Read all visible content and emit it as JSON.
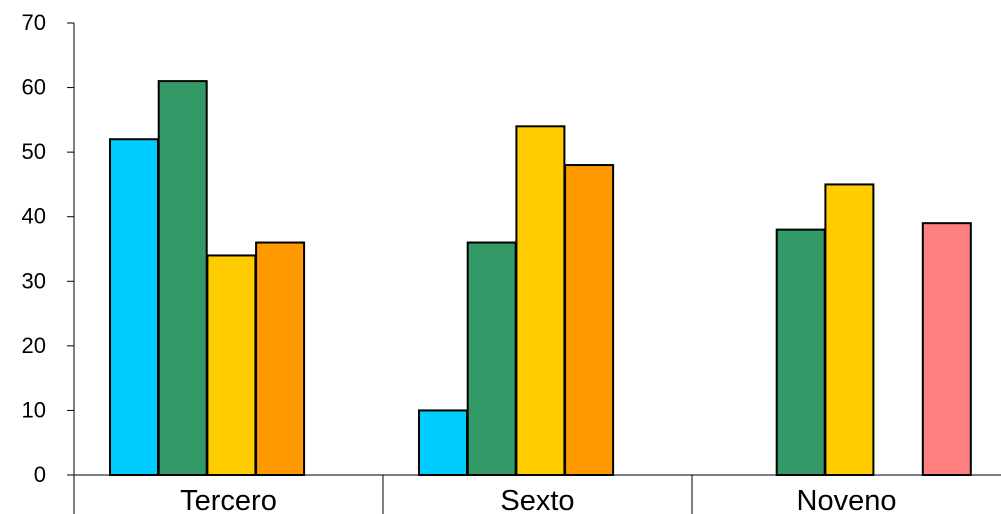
{
  "chart_data": {
    "type": "bar",
    "categories": [
      "Tercero",
      "Sexto",
      "Noveno"
    ],
    "series": [
      {
        "color": "#00ccff",
        "values": [
          52,
          10,
          null
        ]
      },
      {
        "color": "#339966",
        "values": [
          61,
          36,
          38
        ]
      },
      {
        "color": "#ffcc00",
        "values": [
          34,
          54,
          45
        ]
      },
      {
        "color": "#ff9900",
        "values": [
          36,
          48,
          null
        ]
      },
      {
        "color": "#ff8080",
        "values": [
          null,
          null,
          39
        ]
      }
    ],
    "yticks": [
      "0",
      "10",
      "20",
      "30",
      "40",
      "50",
      "60",
      "70"
    ],
    "ylim": [
      0,
      70
    ],
    "grid": false,
    "legend": "none"
  }
}
